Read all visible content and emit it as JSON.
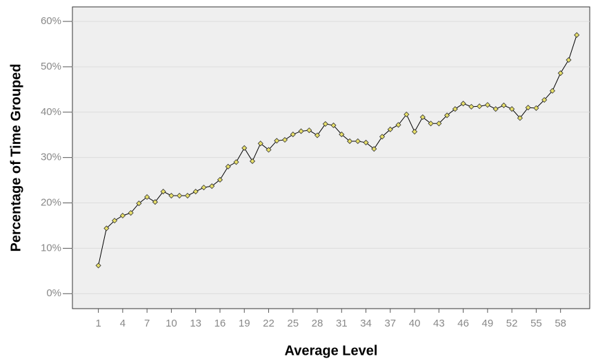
{
  "chart_data": {
    "type": "line",
    "x_label": "Average Level",
    "y_label": "Percentage of Time Grouped",
    "x": [
      1,
      2,
      3,
      4,
      5,
      6,
      7,
      8,
      9,
      10,
      11,
      12,
      13,
      14,
      15,
      16,
      17,
      18,
      19,
      20,
      21,
      22,
      23,
      24,
      25,
      26,
      27,
      28,
      29,
      30,
      31,
      32,
      33,
      34,
      35,
      36,
      37,
      38,
      39,
      40,
      41,
      42,
      43,
      44,
      45,
      46,
      47,
      48,
      49,
      50,
      51,
      52,
      53,
      54,
      55,
      56,
      57,
      58,
      59,
      60
    ],
    "values": [
      6.2,
      14.4,
      16.1,
      17.2,
      17.8,
      19.9,
      21.3,
      20.2,
      22.5,
      21.6,
      21.6,
      21.6,
      22.5,
      23.4,
      23.7,
      25.1,
      28.0,
      29.0,
      32.1,
      29.2,
      33.1,
      31.7,
      33.7,
      33.9,
      35.1,
      35.8,
      36.0,
      34.9,
      37.4,
      37.1,
      35.1,
      33.6,
      33.6,
      33.3,
      31.9,
      34.6,
      36.2,
      37.2,
      39.5,
      35.7,
      38.9,
      37.5,
      37.5,
      39.3,
      40.7,
      41.9,
      41.2,
      41.3,
      41.6,
      40.7,
      41.5,
      40.7,
      38.7,
      41.0,
      40.9,
      42.7,
      44.7,
      48.6,
      51.5,
      57.0
    ],
    "color": "#000000",
    "marker_color": "#e8e06a",
    "xlim": [
      -2.2,
      61.6
    ],
    "xticks": [
      1,
      4,
      7,
      10,
      13,
      16,
      19,
      22,
      25,
      28,
      31,
      34,
      37,
      40,
      43,
      46,
      49,
      52,
      55,
      58
    ],
    "ylim": [
      -3.3,
      63.2
    ],
    "yticks": [
      {
        "value": 0,
        "label": "0%"
      },
      {
        "value": 10,
        "label": "10%"
      },
      {
        "value": 20,
        "label": "20%"
      },
      {
        "value": 30,
        "label": "30%"
      },
      {
        "value": 40,
        "label": "40%"
      },
      {
        "value": 50,
        "label": "50%"
      },
      {
        "value": 60,
        "label": "60%"
      }
    ],
    "grid": true
  }
}
